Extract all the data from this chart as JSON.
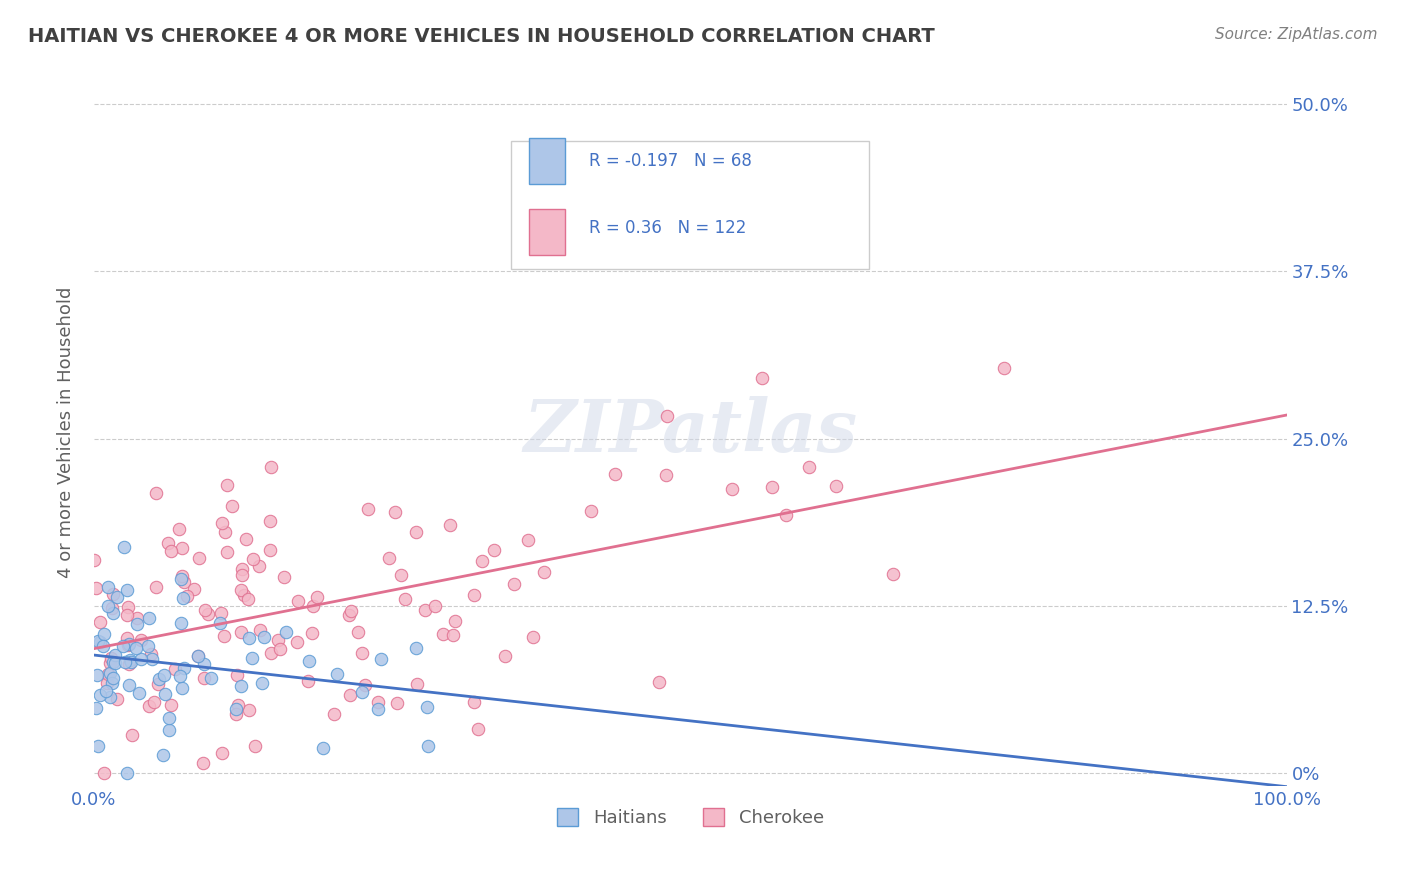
{
  "title": "HAITIAN VS CHEROKEE 4 OR MORE VEHICLES IN HOUSEHOLD CORRELATION CHART",
  "source_text": "Source: ZipAtlas.com",
  "xlabel": "",
  "ylabel": "4 or more Vehicles in Household",
  "xlim": [
    0,
    100
  ],
  "ylim": [
    -1,
    52
  ],
  "xtick_labels": [
    "0.0%",
    "100.0%"
  ],
  "ytick_positions": [
    0,
    12.5,
    25,
    37.5,
    50
  ],
  "ytick_labels": [
    "0%",
    "12.5%",
    "25.0%",
    "37.5%",
    "50.0%"
  ],
  "haitian_color": "#aec6e8",
  "haitian_edge_color": "#5b9bd5",
  "cherokee_color": "#f4b8c8",
  "cherokee_edge_color": "#e07090",
  "haitian_line_color": "#4472c4",
  "cherokee_line_color": "#e07090",
  "R_haitian": -0.197,
  "N_haitian": 68,
  "R_cherokee": 0.36,
  "N_cherokee": 122,
  "background_color": "#ffffff",
  "grid_color": "#cccccc",
  "title_color": "#404040",
  "watermark_text": "ZIPatlas",
  "watermark_color": "#d0d8e8",
  "legend_label_haitian": "Haitians",
  "legend_label_cherokee": "Cherokee",
  "haitian_seed": 42,
  "cherokee_seed": 7
}
